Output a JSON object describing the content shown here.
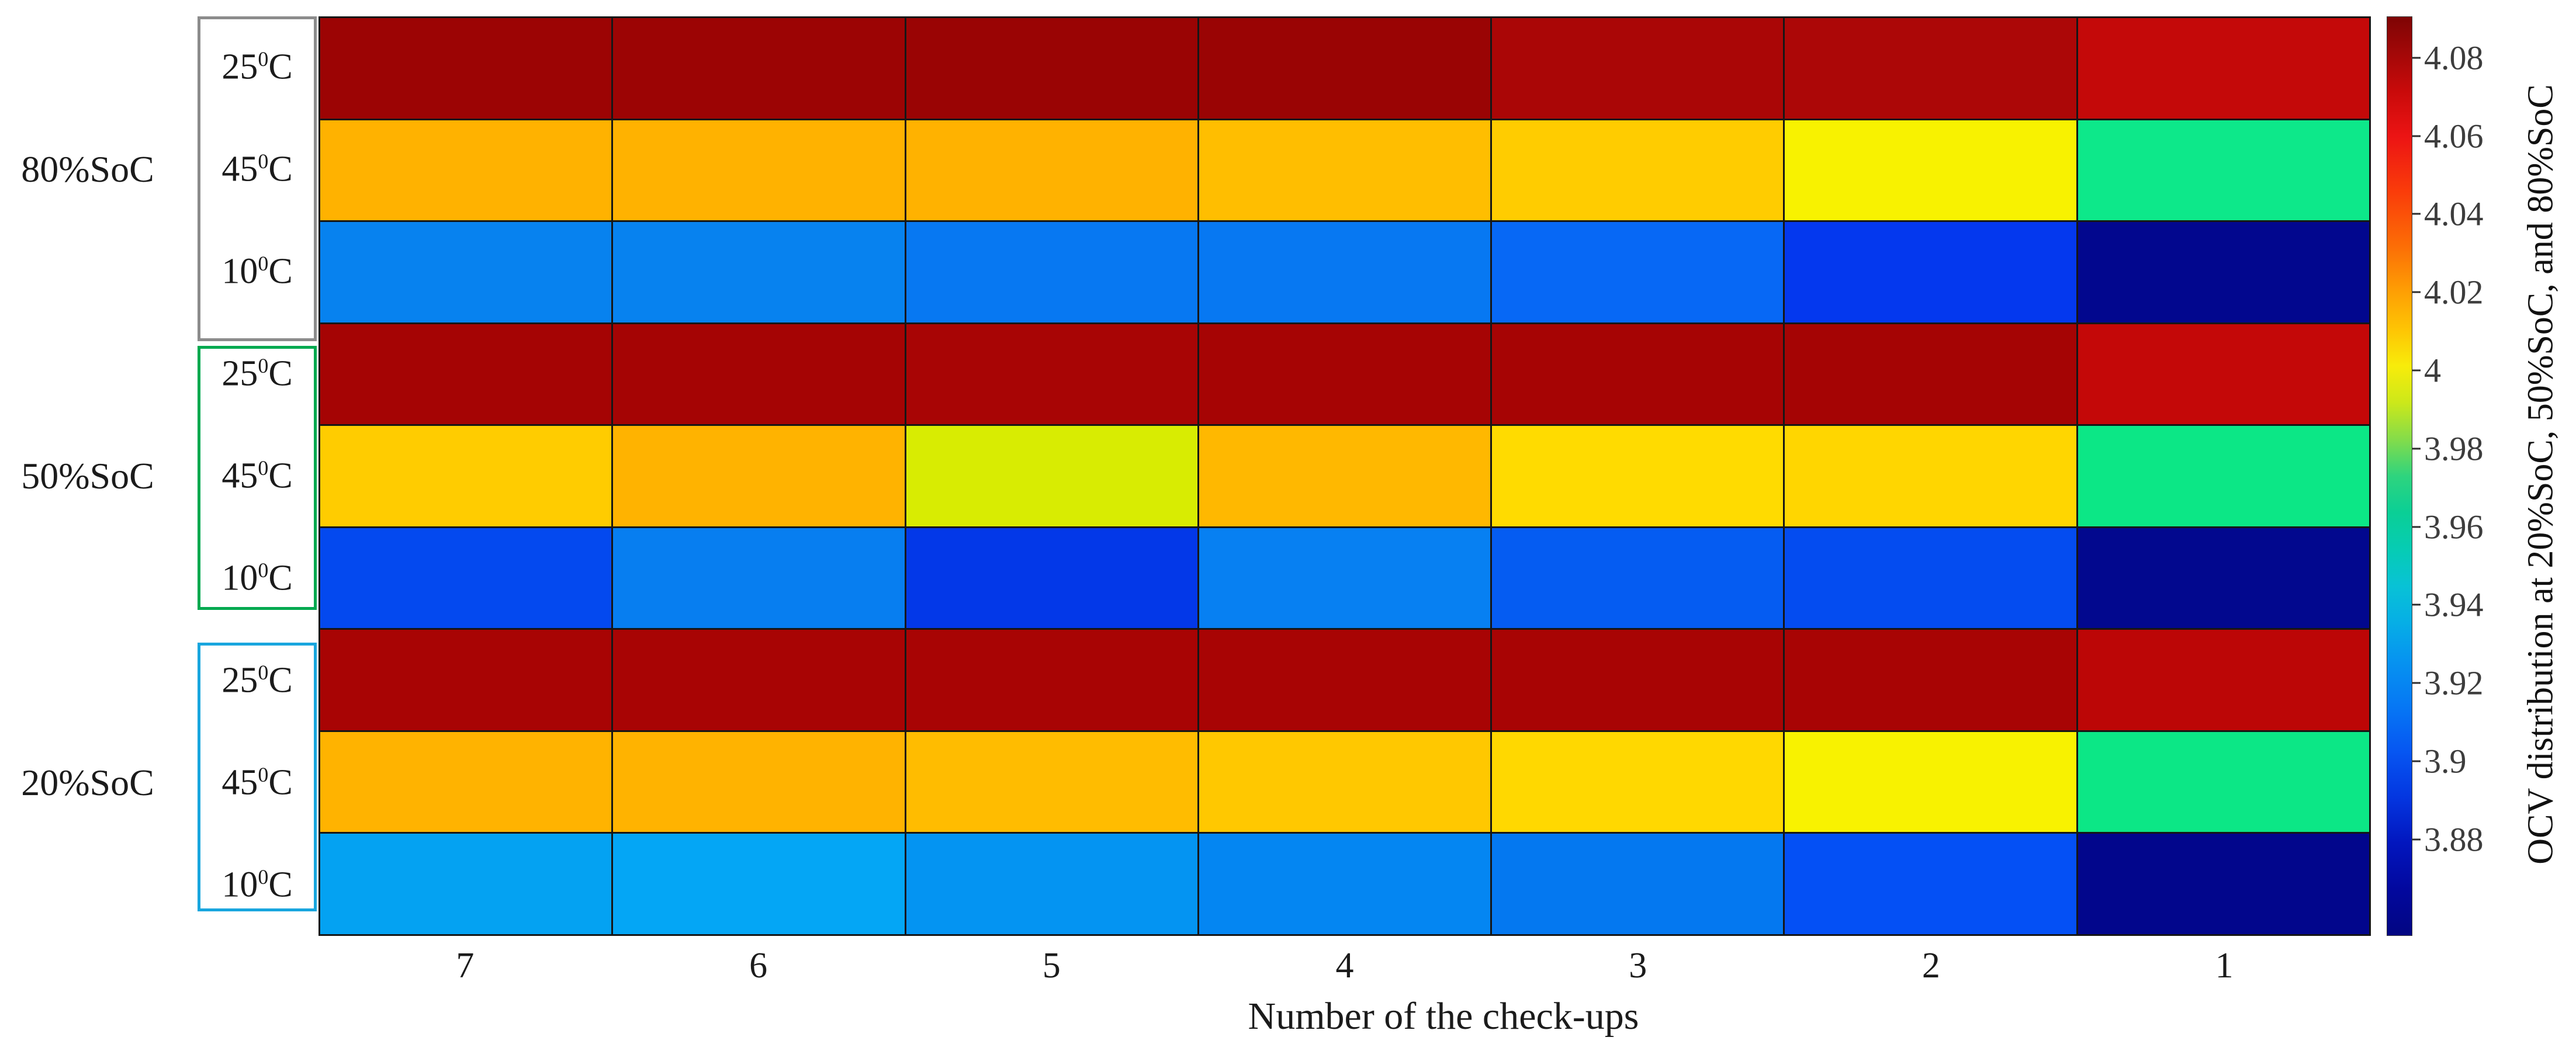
{
  "chart_data": {
    "type": "heatmap",
    "title": "",
    "xlabel": "Number of the check-ups",
    "x_categories": [
      "7",
      "6",
      "5",
      "4",
      "3",
      "2",
      "1"
    ],
    "ylabel_groups": [
      "80%SoC",
      "50%SoC",
      "20%SoC"
    ],
    "temperature_labels": [
      "25°C",
      "45°C",
      "10°C"
    ],
    "colorbar": {
      "label": "OCV distribution at 20%SoC, 50%SoC, and 80%SoC",
      "value_range": [
        3.8553,
        4.0906
      ],
      "ticks": [
        {
          "label": "4.08",
          "value": 4.08
        },
        {
          "label": "4.06",
          "value": 4.06
        },
        {
          "label": "4.04",
          "value": 4.04
        },
        {
          "label": "4.02",
          "value": 4.02
        },
        {
          "label": "4",
          "value": 4.0
        },
        {
          "label": "3.98",
          "value": 3.98
        },
        {
          "label": "3.96",
          "value": 3.96
        },
        {
          "label": "3.94",
          "value": 3.94
        },
        {
          "label": "3.92",
          "value": 3.92
        },
        {
          "label": "3.9",
          "value": 3.9
        },
        {
          "label": "3.88",
          "value": 3.88
        }
      ],
      "gradient": [
        {
          "pos": 0,
          "color": "#7E0404"
        },
        {
          "pos": 4,
          "color": "#A30808"
        },
        {
          "pos": 8,
          "color": "#C80A0A"
        },
        {
          "pos": 13,
          "color": "#EC1414"
        },
        {
          "pos": 19,
          "color": "#FA3C0A"
        },
        {
          "pos": 25,
          "color": "#FC6E06"
        },
        {
          "pos": 30,
          "color": "#FEA004"
        },
        {
          "pos": 34,
          "color": "#FEC404"
        },
        {
          "pos": 38,
          "color": "#F8EC0A"
        },
        {
          "pos": 42,
          "color": "#CCE81A"
        },
        {
          "pos": 46,
          "color": "#84DC4A"
        },
        {
          "pos": 50,
          "color": "#2ED47E"
        },
        {
          "pos": 54,
          "color": "#0ACF96"
        },
        {
          "pos": 58,
          "color": "#06CCB4"
        },
        {
          "pos": 62,
          "color": "#08C2D6"
        },
        {
          "pos": 66,
          "color": "#06AEE6"
        },
        {
          "pos": 70,
          "color": "#0694F0"
        },
        {
          "pos": 75,
          "color": "#0678F4"
        },
        {
          "pos": 80,
          "color": "#0656F2"
        },
        {
          "pos": 85,
          "color": "#0436E0"
        },
        {
          "pos": 90,
          "color": "#0216BE"
        },
        {
          "pos": 95,
          "color": "#02089E"
        },
        {
          "pos": 100,
          "color": "#020682"
        }
      ]
    },
    "groups": [
      {
        "soc_label": "80%SoC",
        "box_color": "#8C8C8C",
        "rows": [
          {
            "temp": "25",
            "temp_sup": "0",
            "temp_unit": "C",
            "values": [
              4.085,
              4.085,
              4.085,
              4.085,
              4.082,
              4.081,
              4.076
            ],
            "colors": [
              "#9C0404",
              "#9C0404",
              "#9A0404",
              "#9A0404",
              "#AA0606",
              "#AC0707",
              "#C40909"
            ]
          },
          {
            "temp": "45",
            "temp_sup": "0",
            "temp_unit": "C",
            "values": [
              4.021,
              4.021,
              4.021,
              4.018,
              4.014,
              4.005,
              3.971
            ],
            "colors": [
              "#FFB200",
              "#FFB200",
              "#FFB200",
              "#FFBE00",
              "#FFCC00",
              "#F8F200",
              "#0DE88A"
            ]
          },
          {
            "temp": "10",
            "temp_sup": "0",
            "temp_unit": "C",
            "values": [
              3.921,
              3.921,
              3.918,
              3.918,
              3.915,
              3.899,
              3.869
            ],
            "colors": [
              "#0782EF",
              "#0782EF",
              "#0778F2",
              "#0778F2",
              "#0768F5",
              "#0438EE",
              "#02078E"
            ]
          }
        ]
      },
      {
        "soc_label": "50%SoC",
        "box_color": "#00A94F",
        "rows": [
          {
            "temp": "25",
            "temp_sup": "0",
            "temp_unit": "C",
            "values": [
              4.083,
              4.083,
              4.083,
              4.083,
              4.083,
              4.083,
              4.076
            ],
            "colors": [
              "#A50404",
              "#A50404",
              "#A80505",
              "#A60404",
              "#A60404",
              "#A50404",
              "#C40808"
            ]
          },
          {
            "temp": "45",
            "temp_sup": "0",
            "temp_unit": "C",
            "values": [
              4.015,
              4.021,
              3.998,
              4.02,
              4.013,
              4.012,
              3.971
            ],
            "colors": [
              "#FFCC00",
              "#FFB300",
              "#D8EC02",
              "#FFB800",
              "#FFDB00",
              "#FFD600",
              "#0CE786"
            ]
          },
          {
            "temp": "10",
            "temp_sup": "0",
            "temp_unit": "C",
            "values": [
              3.906,
              3.92,
              3.9,
              3.921,
              3.911,
              3.907,
              3.869
            ],
            "colors": [
              "#0449EF",
              "#077EF0",
              "#0338E8",
              "#0780F2",
              "#055CF2",
              "#044CF0",
              "#02088E"
            ]
          }
        ]
      },
      {
        "soc_label": "20%SoC",
        "box_color": "#18A6DE",
        "rows": [
          {
            "temp": "25",
            "temp_sup": "0",
            "temp_unit": "C",
            "values": [
              4.082,
              4.082,
              4.082,
              4.082,
              4.082,
              4.082,
              4.078
            ],
            "colors": [
              "#A80404",
              "#A80404",
              "#A80404",
              "#A80404",
              "#A80404",
              "#A80404",
              "#BC0606"
            ]
          },
          {
            "temp": "45",
            "temp_sup": "0",
            "temp_unit": "C",
            "values": [
              4.021,
              4.021,
              4.019,
              4.017,
              4.013,
              4.005,
              3.971
            ],
            "colors": [
              "#FFB300",
              "#FFB300",
              "#FFBC00",
              "#FFC800",
              "#FFD800",
              "#F8F200",
              "#0CE786"
            ]
          },
          {
            "temp": "10",
            "temp_sup": "0",
            "temp_unit": "C",
            "values": [
              3.928,
              3.929,
              3.926,
              3.923,
              3.919,
              3.903,
              3.868
            ],
            "colors": [
              "#04A2F2",
              "#04A6F5",
              "#0494F2",
              "#0486F2",
              "#0478F0",
              "#0450F5",
              "#02068C"
            ]
          }
        ]
      }
    ]
  }
}
